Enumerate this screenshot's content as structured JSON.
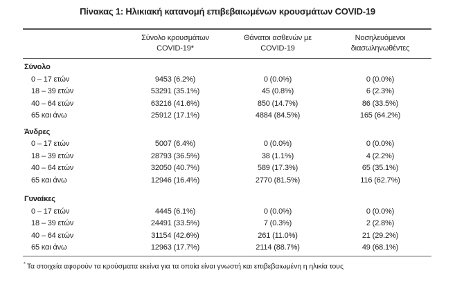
{
  "title": "Πίνακας 1: Ηλικιακή κατανομή επιβεβαιωμένων κρουσμάτων COVID-19",
  "table": {
    "columns": [
      {
        "line1": "Σύνολο κρουσμάτων",
        "line2": "COVID-19*"
      },
      {
        "line1": "Θάνατοι ασθενών με",
        "line2": "COVID-19"
      },
      {
        "line1": "Νοσηλευόμενοι",
        "line2": "διασωληνωθέντες"
      }
    ],
    "sections": [
      {
        "label": "Σύνολο",
        "rows": [
          {
            "age": "0 – 17 ετών",
            "cases": "9453 (6.2%)",
            "deaths": "0 (0.0%)",
            "intubated": "0 (0.0%)"
          },
          {
            "age": "18 – 39 ετών",
            "cases": "53291 (35.1%)",
            "deaths": "45 (0.8%)",
            "intubated": "6 (2.3%)"
          },
          {
            "age": "40 – 64 ετών",
            "cases": "63216 (41.6%)",
            "deaths": "850 (14.7%)",
            "intubated": "86 (33.5%)"
          },
          {
            "age": "65 και άνω",
            "cases": "25912 (17.1%)",
            "deaths": "4884 (84.5%)",
            "intubated": "165 (64.2%)"
          }
        ]
      },
      {
        "label": "Άνδρες",
        "rows": [
          {
            "age": "0 – 17 ετών",
            "cases": "5007 (6.4%)",
            "deaths": "0 (0.0%)",
            "intubated": "0 (0.0%)"
          },
          {
            "age": "18 – 39 ετών",
            "cases": "28793 (36.5%)",
            "deaths": "38 (1.1%)",
            "intubated": "4 (2.2%)"
          },
          {
            "age": "40 – 64 ετών",
            "cases": "32050 (40.7%)",
            "deaths": "589 (17.3%)",
            "intubated": "65 (35.1%)"
          },
          {
            "age": "65 και άνω",
            "cases": "12946 (16.4%)",
            "deaths": "2770 (81.5%)",
            "intubated": "116 (62.7%)"
          }
        ]
      },
      {
        "label": "Γυναίκες",
        "rows": [
          {
            "age": "0 – 17 ετών",
            "cases": "4445 (6.1%)",
            "deaths": "0 (0.0%)",
            "intubated": "0 (0.0%)"
          },
          {
            "age": "18 – 39 ετών",
            "cases": "24491 (33.5%)",
            "deaths": "7 (0.3%)",
            "intubated": "2 (2.8%)"
          },
          {
            "age": "40 – 64 ετών",
            "cases": "31154 (42.6%)",
            "deaths": "261 (11.0%)",
            "intubated": "21 (29.2%)"
          },
          {
            "age": "65 και άνω",
            "cases": "12963 (17.7%)",
            "deaths": "2114 (88.7%)",
            "intubated": "49 (68.1%)"
          }
        ]
      }
    ]
  },
  "footnote": {
    "marker": "*",
    "text": "Τα στοιχεία αφορούν τα κρούσματα εκείνα για τα οποία είναι γνωστή και επιβεβαιωμένη η ηλικία τους"
  },
  "colors": {
    "text": "#222222",
    "rule": "#555555",
    "background": "#ffffff"
  }
}
